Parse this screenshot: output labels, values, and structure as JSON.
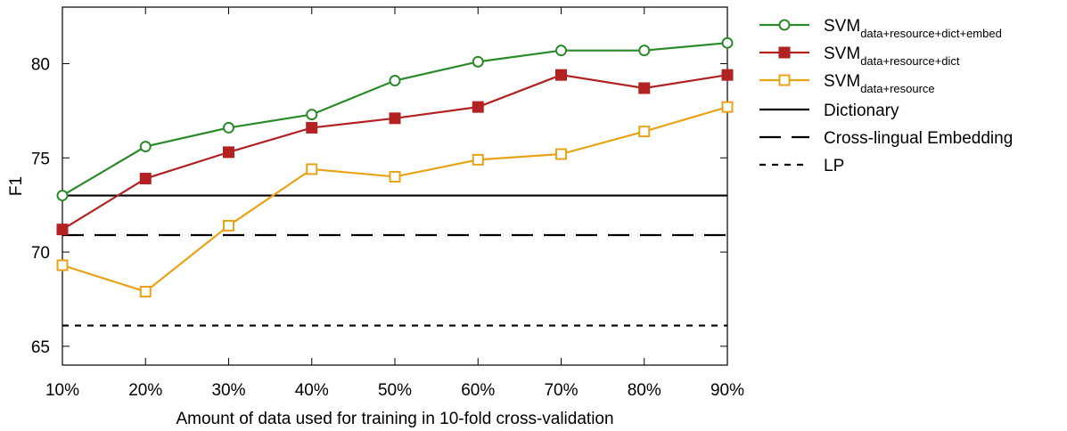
{
  "chart_data": {
    "type": "line",
    "xlabel": "Amount of data used for training in 10-fold cross-validation",
    "ylabel": "F1",
    "categories": [
      "10%",
      "20%",
      "30%",
      "40%",
      "50%",
      "60%",
      "70%",
      "80%",
      "90%"
    ],
    "ylim": [
      64,
      83
    ],
    "yticks": [
      65,
      70,
      75,
      80
    ],
    "grid": false,
    "legend_position": "right",
    "series": [
      {
        "name": "SVM",
        "subscript": "data+resource+dict+embed",
        "marker": "open-circle",
        "color": "#2a8a2a",
        "values": [
          73.0,
          75.6,
          76.6,
          77.3,
          79.1,
          80.1,
          80.7,
          80.7,
          81.1
        ]
      },
      {
        "name": "SVM",
        "subscript": "data+resource+dict",
        "marker": "filled-square",
        "color": "#b22222",
        "values": [
          71.2,
          73.9,
          75.3,
          76.6,
          77.1,
          77.7,
          79.4,
          78.7,
          79.4
        ]
      },
      {
        "name": "SVM",
        "subscript": "data+resource",
        "marker": "open-square",
        "color": "#e8a317",
        "values": [
          69.3,
          67.9,
          71.4,
          74.4,
          74.0,
          74.9,
          75.2,
          76.4,
          77.7
        ]
      }
    ],
    "baselines": [
      {
        "name": "Dictionary",
        "value": 73.0,
        "dash": "solid",
        "color": "#000000"
      },
      {
        "name": "Cross-lingual Embedding",
        "value": 70.9,
        "dash": "long-dash",
        "color": "#000000"
      },
      {
        "name": "LP",
        "value": 66.1,
        "dash": "short-dash",
        "color": "#000000"
      }
    ]
  }
}
